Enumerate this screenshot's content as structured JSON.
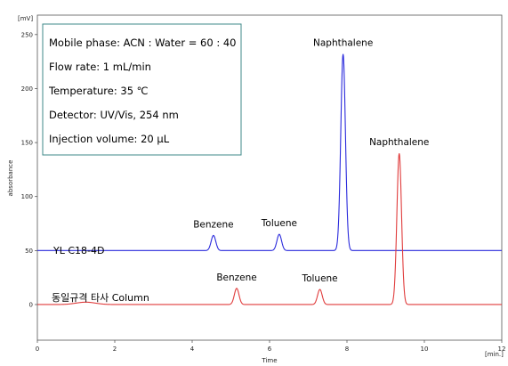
{
  "chart_data": {
    "type": "line",
    "title": "",
    "xlabel": "Time",
    "ylabel": "absorbance",
    "x_unit": "[min.]",
    "y_unit": "[mV]",
    "xlim": [
      0,
      12
    ],
    "ylim": [
      -33,
      268
    ],
    "x_ticks": [
      "0",
      "2",
      "4",
      "6",
      "8",
      "10",
      "12"
    ],
    "y_ticks": [
      "0",
      "50",
      "100",
      "150",
      "200",
      "250"
    ],
    "grid": false,
    "conditions": [
      "Mobile phase: ACN : Water = 60 : 40",
      "Flow rate: 1 mL/min",
      "Temperature: 35 ℃",
      "Detector: UV/Vis, 254 nm",
      "Injection volume: 20 μL"
    ],
    "series": [
      {
        "name": "YL C18-4D",
        "color": "#2a2adc",
        "baseline": 50,
        "peaks": [
          {
            "label": "Benzene",
            "time": 4.55,
            "height": 64
          },
          {
            "label": "Toluene",
            "time": 6.25,
            "height": 65
          },
          {
            "label": "Naphthalene",
            "time": 7.9,
            "height": 232
          }
        ]
      },
      {
        "name": "동일규격 타사 Column",
        "color": "#e03c3c",
        "baseline": 0,
        "peaks": [
          {
            "label": "Benzene",
            "time": 5.15,
            "height": 15
          },
          {
            "label": "Toluene",
            "time": 7.3,
            "height": 14
          },
          {
            "label": "Naphthalene",
            "time": 9.35,
            "height": 140
          }
        ]
      }
    ]
  }
}
